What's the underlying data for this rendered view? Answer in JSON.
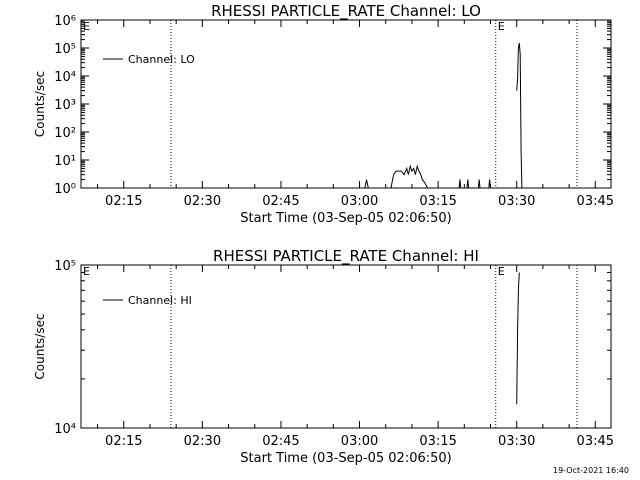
{
  "timestamp": "19-Oct-2021 16:40",
  "chart_data": [
    {
      "type": "line",
      "title": "RHESSI PARTICLE_RATE Channel: LO",
      "xlabel": "Start Time (03-Sep-05 02:06:50)",
      "ylabel": "Counts/sec",
      "y_scale": "log",
      "xlim": [
        "02:06:50",
        "03:48:00"
      ],
      "ylim": [
        1,
        1000000
      ],
      "x_ticks": [
        "02:15",
        "02:30",
        "02:45",
        "03:00",
        "03:15",
        "03:30",
        "03:45"
      ],
      "y_ticks": [
        {
          "value": 1,
          "label": "10⁰"
        },
        {
          "value": 10,
          "label": "10¹"
        },
        {
          "value": 100,
          "label": "10²"
        },
        {
          "value": 1000,
          "label": "10³"
        },
        {
          "value": 10000,
          "label": "10⁴"
        },
        {
          "value": 100000,
          "label": "10⁵"
        },
        {
          "value": 1000000,
          "label": "10⁶"
        }
      ],
      "vertical_markers": [
        "02:24:00",
        "03:26:00",
        "03:41:30"
      ],
      "event_markers": [
        {
          "time": "02:06:50",
          "label": "E"
        },
        {
          "time": "03:26:00",
          "label": "E"
        }
      ],
      "legend": "top-left",
      "series": [
        {
          "name": "Channel: LO",
          "x": [
            "03:01:00",
            "03:01:20",
            "03:01:40",
            "03:06:00",
            "03:06:30",
            "03:07:00",
            "03:08:00",
            "03:08:30",
            "03:09:00",
            "03:09:20",
            "03:09:40",
            "03:10:00",
            "03:10:20",
            "03:10:40",
            "03:11:00",
            "03:11:20",
            "03:11:40",
            "03:12:00",
            "03:12:30",
            "03:13:00"
          ],
          "y": [
            1,
            2,
            1,
            1,
            3,
            4,
            4,
            3,
            5,
            3,
            6,
            4,
            5,
            3,
            6,
            4,
            3,
            2,
            1.5,
            1
          ]
        },
        {
          "name": "",
          "x": [
            "03:19:00",
            "03:19:10",
            "03:19:20"
          ],
          "y": [
            1,
            2,
            1
          ]
        },
        {
          "name": "",
          "x": [
            "03:20:30",
            "03:20:40",
            "03:20:50"
          ],
          "y": [
            1,
            2,
            1
          ]
        },
        {
          "name": "",
          "x": [
            "03:22:40",
            "03:22:50",
            "03:23:00"
          ],
          "y": [
            1,
            2,
            1
          ]
        },
        {
          "name": "",
          "x": [
            "03:24:40",
            "03:24:50",
            "03:25:00"
          ],
          "y": [
            1,
            2,
            1
          ]
        },
        {
          "name": "",
          "x": [
            "03:30:00",
            "03:30:10",
            "03:30:20",
            "03:30:30",
            "03:30:40",
            "03:30:50",
            "03:31:00"
          ],
          "y": [
            3000,
            8000,
            100000,
            150000,
            60000,
            20,
            1
          ]
        }
      ]
    },
    {
      "type": "line",
      "title": "RHESSI PARTICLE_RATE Channel: HI",
      "xlabel": "Start Time (03-Sep-05 02:06:50)",
      "ylabel": "Counts/sec",
      "y_scale": "log",
      "xlim": [
        "02:06:50",
        "03:48:00"
      ],
      "ylim": [
        10000,
        100000
      ],
      "x_ticks": [
        "02:15",
        "02:30",
        "02:45",
        "03:00",
        "03:15",
        "03:30",
        "03:45"
      ],
      "y_ticks": [
        {
          "value": 10000,
          "label": "10⁴"
        },
        {
          "value": 100000,
          "label": "10⁵"
        }
      ],
      "vertical_markers": [
        "02:24:00",
        "03:26:00",
        "03:41:30"
      ],
      "event_markers": [
        {
          "time": "02:06:50",
          "label": "E"
        },
        {
          "time": "03:26:00",
          "label": "E"
        }
      ],
      "legend": "top-left",
      "series": [
        {
          "name": "Channel: HI",
          "x": [
            "03:30:00",
            "03:30:10",
            "03:30:20",
            "03:30:30"
          ],
          "y": [
            14000,
            40000,
            70000,
            90000
          ]
        }
      ]
    }
  ]
}
